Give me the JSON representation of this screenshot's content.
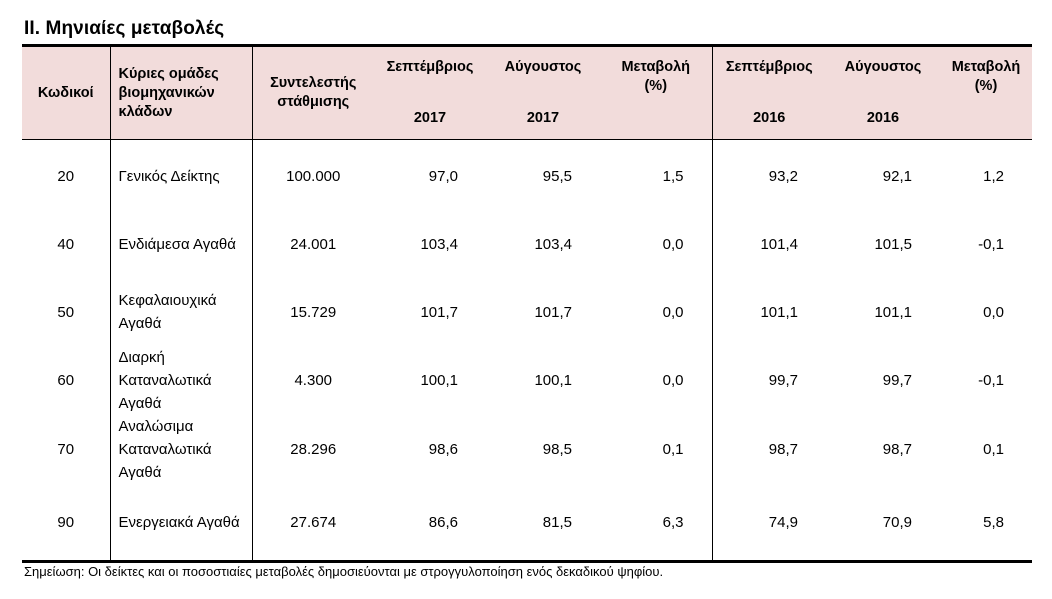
{
  "section_title": "II. Μηνιαίες μεταβολές",
  "headers": {
    "code": "Κωδικοί",
    "group": "Κύριες ομάδες βιομηχανικών κλάδων",
    "weight": "Συντελεστής στάθμισης",
    "sep": "Σεπτέμβριος",
    "aug": "Αύγουστος",
    "change": "Μεταβολή",
    "pct": "(%)",
    "year_2017": "2017",
    "year_2016": "2016"
  },
  "rows": [
    {
      "code": "20",
      "name": "Γενικός Δείκτης",
      "weight": "100.000",
      "sep_2017": "97,0",
      "aug_2017": "95,5",
      "chg_2017": "1,5",
      "sep_2016": "93,2",
      "aug_2016": "92,1",
      "chg_2016": "1,2"
    },
    {
      "code": "40",
      "name": "Ενδιάμεσα Αγαθά",
      "weight": "24.001",
      "sep_2017": "103,4",
      "aug_2017": "103,4",
      "chg_2017": "0,0",
      "sep_2016": "101,4",
      "aug_2016": "101,5",
      "chg_2016": "-0,1"
    },
    {
      "code": "50",
      "name": "Κεφαλαιουχικά Αγαθά",
      "weight": "15.729",
      "sep_2017": "101,7",
      "aug_2017": "101,7",
      "chg_2017": "0,0",
      "sep_2016": "101,1",
      "aug_2016": "101,1",
      "chg_2016": "0,0"
    },
    {
      "code": "60",
      "name": "Διαρκή Καταναλωτικά Αγαθά",
      "weight": "4.300",
      "sep_2017": "100,1",
      "aug_2017": "100,1",
      "chg_2017": "0,0",
      "sep_2016": "99,7",
      "aug_2016": "99,7",
      "chg_2016": "-0,1"
    },
    {
      "code": "70",
      "name": "Αναλώσιμα Καταναλωτικά Αγαθά",
      "weight": "28.296",
      "sep_2017": "98,6",
      "aug_2017": "98,5",
      "chg_2017": "0,1",
      "sep_2016": "98,7",
      "aug_2016": "98,7",
      "chg_2016": "0,1"
    },
    {
      "code": "90",
      "name": "Ενεργειακά Αγαθά",
      "weight": "27.674",
      "sep_2017": "86,6",
      "aug_2017": "81,5",
      "chg_2017": "6,3",
      "sep_2016": "74,9",
      "aug_2016": "70,9",
      "chg_2016": "5,8"
    }
  ],
  "note": "Σημείωση: Οι δείκτες και οι ποσοστιαίες μεταβολές δημοσιεύονται με στρογγυλοποίηση ενός δεκαδικού ψηφίου.",
  "colors": {
    "header_bg": "#f2dcdb",
    "border": "#000000"
  }
}
